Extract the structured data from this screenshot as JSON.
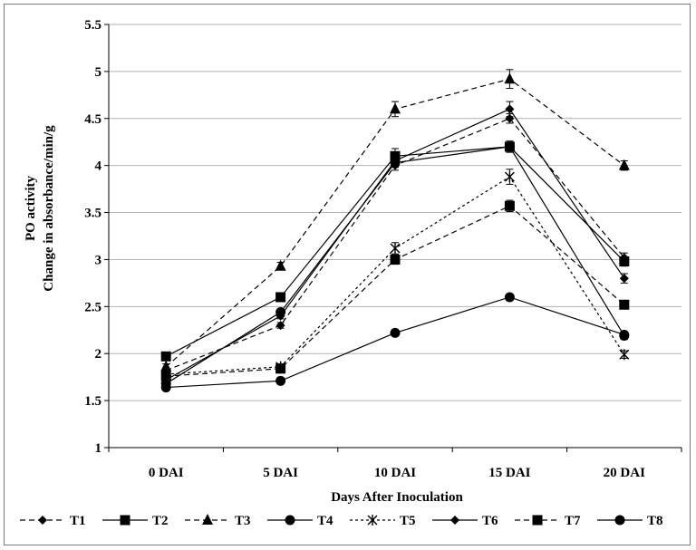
{
  "chart_data": {
    "type": "line",
    "title": "",
    "xlabel": "Days After Inoculation",
    "ylabel_lines": [
      "PO activity",
      "Change in absorbance/min/g"
    ],
    "categories": [
      "0 DAI",
      "5 DAI",
      "10 DAI",
      "15 DAI",
      "20 DAI"
    ],
    "ylim": [
      1,
      5.5
    ],
    "yticks": [
      "1",
      "1.5",
      "2",
      "2.5",
      "3",
      "3.5",
      "4",
      "4.5",
      "5",
      "5.5"
    ],
    "grid": true,
    "legend_position": "bottom",
    "error_bars": true,
    "series": [
      {
        "name": "T1",
        "values": [
          1.82,
          2.3,
          4.0,
          4.5,
          3.02
        ],
        "marker": "diamond",
        "dash": "dash"
      },
      {
        "name": "T2",
        "values": [
          1.97,
          2.6,
          4.1,
          4.2,
          2.98
        ],
        "marker": "square",
        "dash": "solid"
      },
      {
        "name": "T3",
        "values": [
          1.86,
          2.93,
          4.6,
          4.92,
          4.0
        ],
        "marker": "triangle",
        "dash": "dash"
      },
      {
        "name": "T4",
        "values": [
          1.64,
          1.71,
          2.22,
          2.6,
          2.2
        ],
        "marker": "circle",
        "dash": "solid"
      },
      {
        "name": "T5",
        "values": [
          1.78,
          1.86,
          3.12,
          3.88,
          1.99
        ],
        "marker": "star",
        "dash": "dot"
      },
      {
        "name": "T6",
        "values": [
          1.72,
          2.4,
          4.05,
          4.6,
          2.8
        ],
        "marker": "diamond",
        "dash": "solid"
      },
      {
        "name": "T7",
        "values": [
          1.76,
          1.84,
          3.0,
          3.57,
          2.52
        ],
        "marker": "square",
        "dash": "dash"
      },
      {
        "name": "T8",
        "values": [
          1.68,
          2.44,
          4.03,
          4.2,
          2.19
        ],
        "marker": "circle",
        "dash": "solid"
      }
    ],
    "errors": [
      [
        0.03,
        0.03,
        0.05,
        0.05,
        0.05
      ],
      [
        0.03,
        0.03,
        0.08,
        0.06,
        0.05
      ],
      [
        0.03,
        0.04,
        0.08,
        0.1,
        0.05
      ],
      [
        0.02,
        0.02,
        0.03,
        0.03,
        0.03
      ],
      [
        0.03,
        0.03,
        0.06,
        0.08,
        0.04
      ],
      [
        0.03,
        0.03,
        0.05,
        0.08,
        0.05
      ],
      [
        0.03,
        0.03,
        0.05,
        0.06,
        0.04
      ],
      [
        0.02,
        0.03,
        0.05,
        0.05,
        0.04
      ]
    ]
  }
}
